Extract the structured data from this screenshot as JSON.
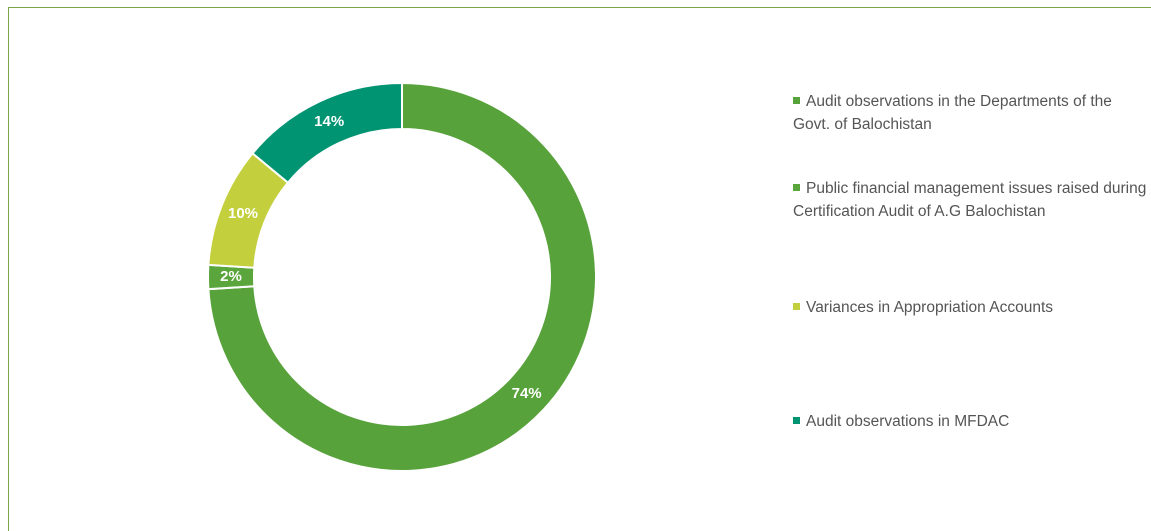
{
  "chart_data": {
    "type": "donut",
    "categories": [
      "Audit observations in the Departments of the Govt. of Balochistan",
      "Public financial management issues raised during Certification Audit of A.G Balochistan",
      "Variances in Appropriation Accounts",
      "Audit observations in MFDAC"
    ],
    "values": [
      74,
      2,
      10,
      14
    ],
    "value_labels": [
      "74%",
      "2%",
      "10%",
      "14%"
    ],
    "colors": [
      "#58a23b",
      "#5aa53c",
      "#c3cf3c",
      "#009472"
    ]
  }
}
